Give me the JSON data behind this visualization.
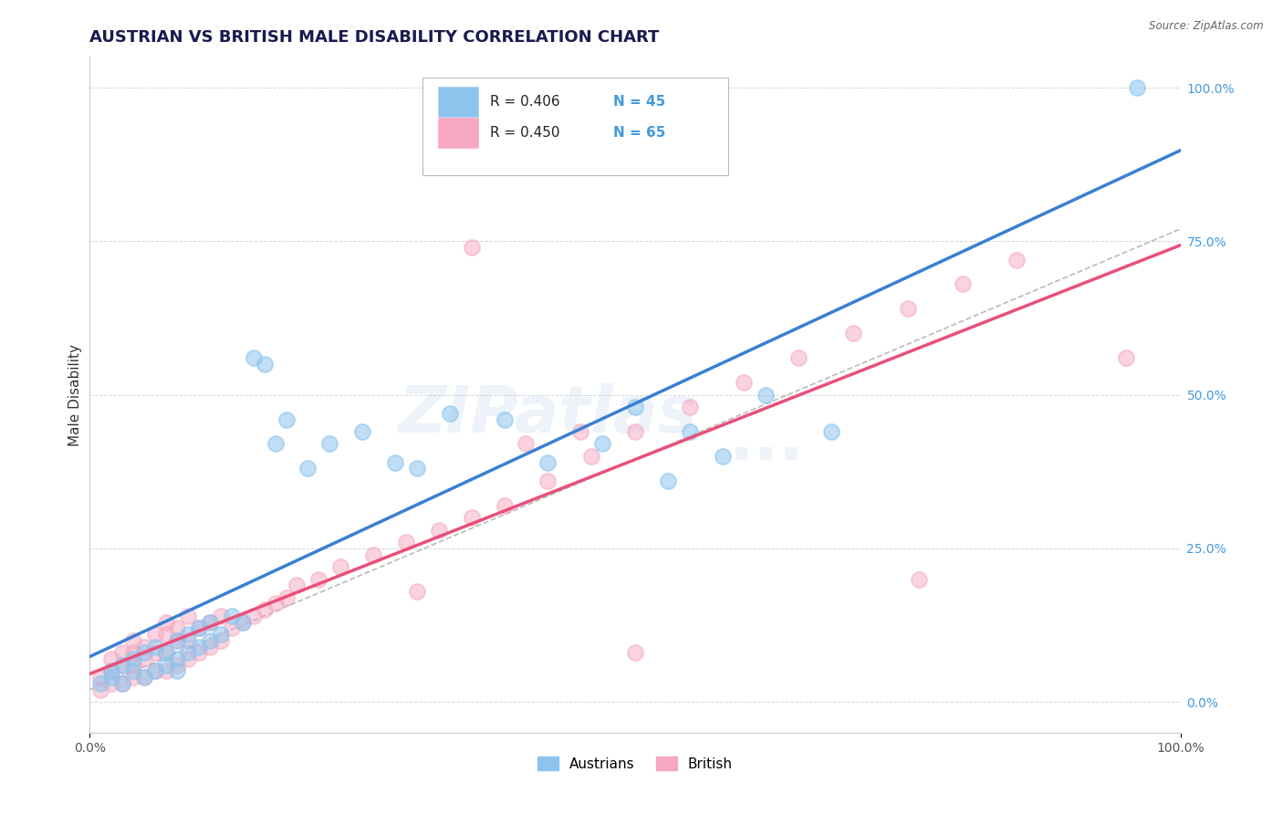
{
  "title": "AUSTRIAN VS BRITISH MALE DISABILITY CORRELATION CHART",
  "source": "Source: ZipAtlas.com",
  "ylabel": "Male Disability",
  "legend_austrians_R": "R = 0.406",
  "legend_austrians_N": "N = 45",
  "legend_british_R": "R = 0.450",
  "legend_british_N": "N = 65",
  "legend_label1": "Austrians",
  "legend_label2": "British",
  "austrian_color": "#8DC4EE",
  "british_color": "#F5A8C0",
  "trendline_austrian_color": "#3A7FD4",
  "trendline_british_color": "#E8507A",
  "trendline_dashed_color": "#AAAAAA",
  "background_color": "#FFFFFF",
  "grid_color": "#CCCCCC",
  "right_axis_color": "#4499DD",
  "xlim": [
    0.0,
    1.0
  ],
  "ylim": [
    -0.05,
    1.05
  ],
  "yticks_right": [
    0.0,
    0.25,
    0.5,
    0.75,
    1.0
  ],
  "ytick_labels_right": [
    "0.0%",
    "25.0%",
    "50.0%",
    "75.0%",
    "100.0%"
  ],
  "austrian_x": [
    0.01,
    0.02,
    0.02,
    0.03,
    0.03,
    0.04,
    0.04,
    0.05,
    0.05,
    0.06,
    0.06,
    0.07,
    0.07,
    0.08,
    0.08,
    0.08,
    0.09,
    0.09,
    0.1,
    0.1,
    0.11,
    0.11,
    0.12,
    0.13,
    0.14,
    0.15,
    0.16,
    0.17,
    0.18,
    0.2,
    0.22,
    0.25,
    0.28,
    0.3,
    0.33,
    0.38,
    0.42,
    0.47,
    0.5,
    0.53,
    0.55,
    0.58,
    0.62,
    0.68,
    0.96
  ],
  "austrian_y": [
    0.03,
    0.04,
    0.05,
    0.03,
    0.06,
    0.05,
    0.07,
    0.04,
    0.08,
    0.05,
    0.09,
    0.06,
    0.08,
    0.05,
    0.1,
    0.07,
    0.08,
    0.11,
    0.09,
    0.12,
    0.1,
    0.13,
    0.11,
    0.14,
    0.13,
    0.56,
    0.55,
    0.42,
    0.46,
    0.38,
    0.42,
    0.44,
    0.39,
    0.38,
    0.47,
    0.46,
    0.39,
    0.42,
    0.48,
    0.36,
    0.44,
    0.4,
    0.5,
    0.44,
    1.0
  ],
  "british_x": [
    0.01,
    0.01,
    0.02,
    0.02,
    0.02,
    0.03,
    0.03,
    0.03,
    0.04,
    0.04,
    0.04,
    0.04,
    0.05,
    0.05,
    0.05,
    0.06,
    0.06,
    0.06,
    0.07,
    0.07,
    0.07,
    0.07,
    0.08,
    0.08,
    0.08,
    0.09,
    0.09,
    0.09,
    0.1,
    0.1,
    0.11,
    0.11,
    0.12,
    0.12,
    0.13,
    0.14,
    0.15,
    0.16,
    0.17,
    0.18,
    0.19,
    0.21,
    0.23,
    0.26,
    0.29,
    0.32,
    0.35,
    0.38,
    0.42,
    0.46,
    0.5,
    0.55,
    0.6,
    0.65,
    0.7,
    0.75,
    0.8,
    0.85,
    0.76,
    0.3,
    0.35,
    0.4,
    0.45,
    0.5,
    0.95
  ],
  "british_y": [
    0.02,
    0.04,
    0.03,
    0.05,
    0.07,
    0.03,
    0.06,
    0.08,
    0.04,
    0.06,
    0.08,
    0.1,
    0.04,
    0.07,
    0.09,
    0.05,
    0.08,
    0.11,
    0.05,
    0.08,
    0.11,
    0.13,
    0.06,
    0.1,
    0.12,
    0.07,
    0.1,
    0.14,
    0.08,
    0.12,
    0.09,
    0.13,
    0.1,
    0.14,
    0.12,
    0.13,
    0.14,
    0.15,
    0.16,
    0.17,
    0.19,
    0.2,
    0.22,
    0.24,
    0.26,
    0.28,
    0.3,
    0.32,
    0.36,
    0.4,
    0.44,
    0.48,
    0.52,
    0.56,
    0.6,
    0.64,
    0.68,
    0.72,
    0.2,
    0.18,
    0.74,
    0.42,
    0.44,
    0.08,
    0.56
  ],
  "watermark_text": "ZIPatlas",
  "title_fontsize": 13,
  "axis_label_fontsize": 11,
  "tick_fontsize": 10,
  "legend_fontsize": 11
}
